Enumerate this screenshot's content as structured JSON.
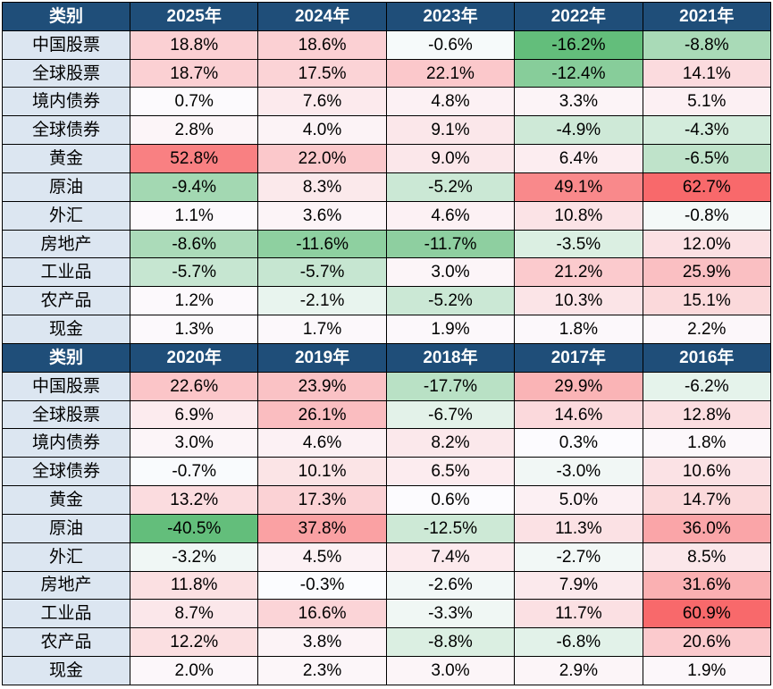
{
  "colors": {
    "header_bg": "#1F4E79",
    "header_text": "#FFFFFF",
    "category_bg": "#DCE6F1",
    "grid_line": "#000000",
    "scale_max_red": "#F8696B",
    "scale_mid_white": "#FCFCFF",
    "scale_min_green": "#63BE7B"
  },
  "chart_data": {
    "type": "heatmap",
    "title": "",
    "corner_label": "类别",
    "value_suffix": "%",
    "layout": "two_stacked_sections_same_categories",
    "sections": [
      {
        "columns": [
          "2025年",
          "2024年",
          "2023年",
          "2022年",
          "2021年"
        ],
        "categories": [
          "中国股票",
          "全球股票",
          "境内债券",
          "全球债券",
          "黄金",
          "原油",
          "外汇",
          "房地产",
          "工业品",
          "农产品",
          "现金"
        ],
        "values": [
          [
            18.8,
            18.6,
            -0.6,
            -16.2,
            -8.8
          ],
          [
            18.7,
            17.5,
            22.1,
            -12.4,
            14.1
          ],
          [
            0.7,
            7.6,
            4.8,
            3.3,
            5.1
          ],
          [
            2.8,
            4.0,
            9.1,
            -4.9,
            -4.3
          ],
          [
            52.8,
            22.0,
            9.0,
            6.4,
            -6.5
          ],
          [
            -9.4,
            8.3,
            -5.2,
            49.1,
            62.7
          ],
          [
            1.1,
            3.6,
            4.6,
            10.8,
            -0.8
          ],
          [
            -8.6,
            -11.6,
            -11.7,
            -3.5,
            12.0
          ],
          [
            -5.7,
            -5.7,
            3.0,
            21.2,
            25.9
          ],
          [
            1.2,
            -2.1,
            -5.2,
            10.3,
            15.1
          ],
          [
            1.3,
            1.7,
            1.9,
            1.8,
            2.2
          ]
        ],
        "color_scale": {
          "min": -16.2,
          "mid": 0,
          "max": 62.7
        }
      },
      {
        "columns": [
          "2020年",
          "2019年",
          "2018年",
          "2017年",
          "2016年"
        ],
        "categories": [
          "中国股票",
          "全球股票",
          "境内债券",
          "全球债券",
          "黄金",
          "原油",
          "外汇",
          "房地产",
          "工业品",
          "农产品",
          "现金"
        ],
        "values": [
          [
            22.6,
            23.9,
            -17.7,
            29.9,
            -6.2
          ],
          [
            6.9,
            26.1,
            -6.7,
            14.6,
            12.8
          ],
          [
            3.0,
            4.6,
            8.2,
            0.3,
            1.8
          ],
          [
            -0.7,
            10.1,
            6.5,
            -3.0,
            10.6
          ],
          [
            13.2,
            17.3,
            0.6,
            5.0,
            14.7
          ],
          [
            -40.5,
            37.8,
            -12.5,
            11.3,
            36.0
          ],
          [
            -3.2,
            4.5,
            7.4,
            -2.7,
            8.5
          ],
          [
            11.8,
            -0.3,
            -2.6,
            7.9,
            31.6
          ],
          [
            8.7,
            16.6,
            -3.3,
            11.7,
            60.9
          ],
          [
            12.2,
            3.8,
            -8.8,
            -6.8,
            20.6
          ],
          [
            2.0,
            2.3,
            3.0,
            2.9,
            1.9
          ]
        ],
        "color_scale": {
          "min": -40.5,
          "mid": 0,
          "max": 60.9
        }
      }
    ]
  }
}
